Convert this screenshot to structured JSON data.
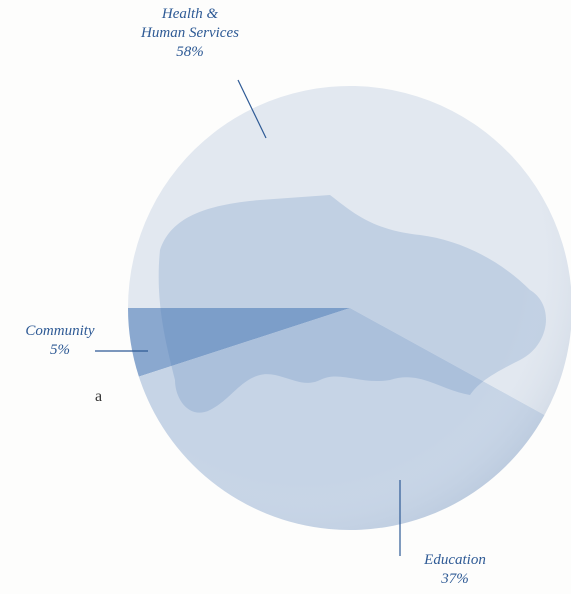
{
  "chart_data": {
    "type": "pie",
    "categories": [
      "Community",
      "Education",
      "Health & Human Services"
    ],
    "values": [
      5,
      37,
      58
    ],
    "value_labels": [
      "5%",
      "37%",
      "58%"
    ],
    "colors": [
      "#8aa8cf",
      "#c6d4e6",
      "#e2e8f0"
    ],
    "annotations": [
      "a"
    ]
  }
}
